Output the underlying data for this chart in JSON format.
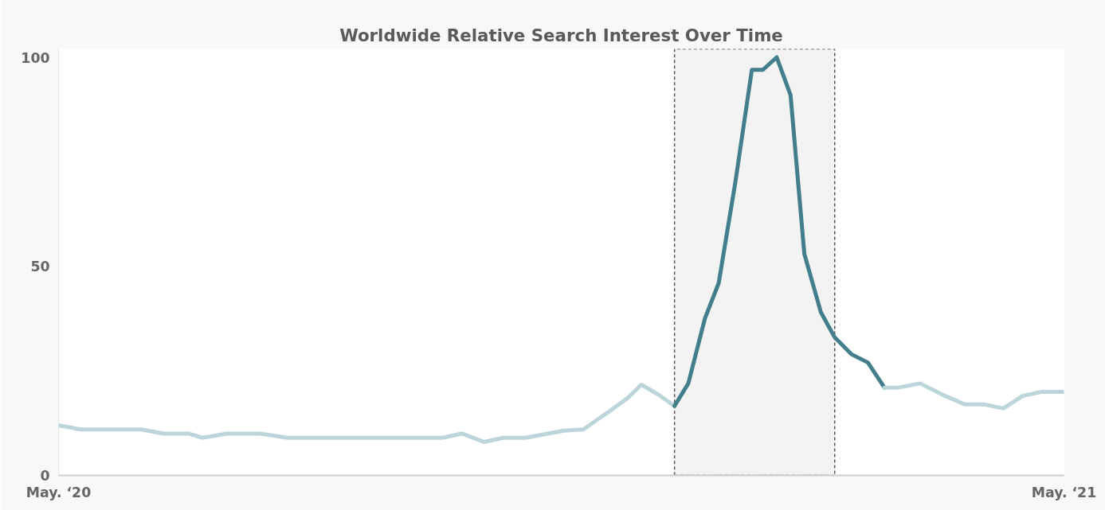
{
  "chart_data": {
    "type": "line",
    "title": "Worldwide Relative Search Interest Over Time",
    "xlim": [
      "2020-05-03",
      "2021-05-02"
    ],
    "xticks": [
      {
        "value": "2020-05-03",
        "label": "May. ‘20"
      },
      {
        "value": "2021-05-02",
        "label": "May. ‘21"
      }
    ],
    "ylim": [
      0,
      102
    ],
    "yticks": [
      0,
      50,
      100
    ],
    "grid": false,
    "line_style": "solid",
    "marker": "none",
    "series": [
      {
        "color": "#bcd5da",
        "x": [
          "2020-05-03",
          "2020-05-11",
          "2020-05-25",
          "2020-06-02",
          "2020-06-10",
          "2020-06-19",
          "2020-06-24",
          "2020-07-03",
          "2020-07-15",
          "2020-07-25",
          "2020-09-19",
          "2020-09-26",
          "2020-10-04",
          "2020-10-11",
          "2020-10-19",
          "2020-11-02",
          "2020-11-09",
          "2020-11-19",
          "2020-11-25",
          "2020-11-30",
          "2020-12-06",
          "2020-12-12"
        ],
        "values": [
          12,
          11,
          11,
          11,
          10,
          10,
          9,
          10,
          10,
          9,
          9,
          10,
          8,
          9,
          9,
          10.7,
          11,
          15.6,
          18.5,
          21.7,
          19.4,
          16.6
        ]
      },
      {
        "color": "#427e8b",
        "x": [
          "2020-12-12",
          "2020-12-17",
          "2020-12-23",
          "2020-12-28",
          "2021-01-03",
          "2021-01-09",
          "2021-01-13",
          "2021-01-18",
          "2021-01-23",
          "2021-01-28",
          "2021-02-03",
          "2021-02-08",
          "2021-02-14",
          "2021-02-20",
          "2021-02-26"
        ],
        "values": [
          16.6,
          22,
          37.5,
          46,
          70,
          97,
          97,
          100,
          91,
          53,
          39,
          33,
          29,
          27,
          21
        ]
      },
      {
        "color": "#bcd5da",
        "x": [
          "2021-02-26",
          "2021-03-03",
          "2021-03-11",
          "2021-03-20",
          "2021-03-27",
          "2021-04-03",
          "2021-04-10",
          "2021-04-17",
          "2021-04-24",
          "2021-05-02"
        ],
        "values": [
          21,
          21,
          22,
          19,
          17,
          17,
          16,
          19,
          20,
          20
        ]
      }
    ],
    "bands": [
      {
        "axis": "x",
        "from": "2020-12-12",
        "to": "2021-02-08",
        "color": "#555555"
      }
    ]
  }
}
